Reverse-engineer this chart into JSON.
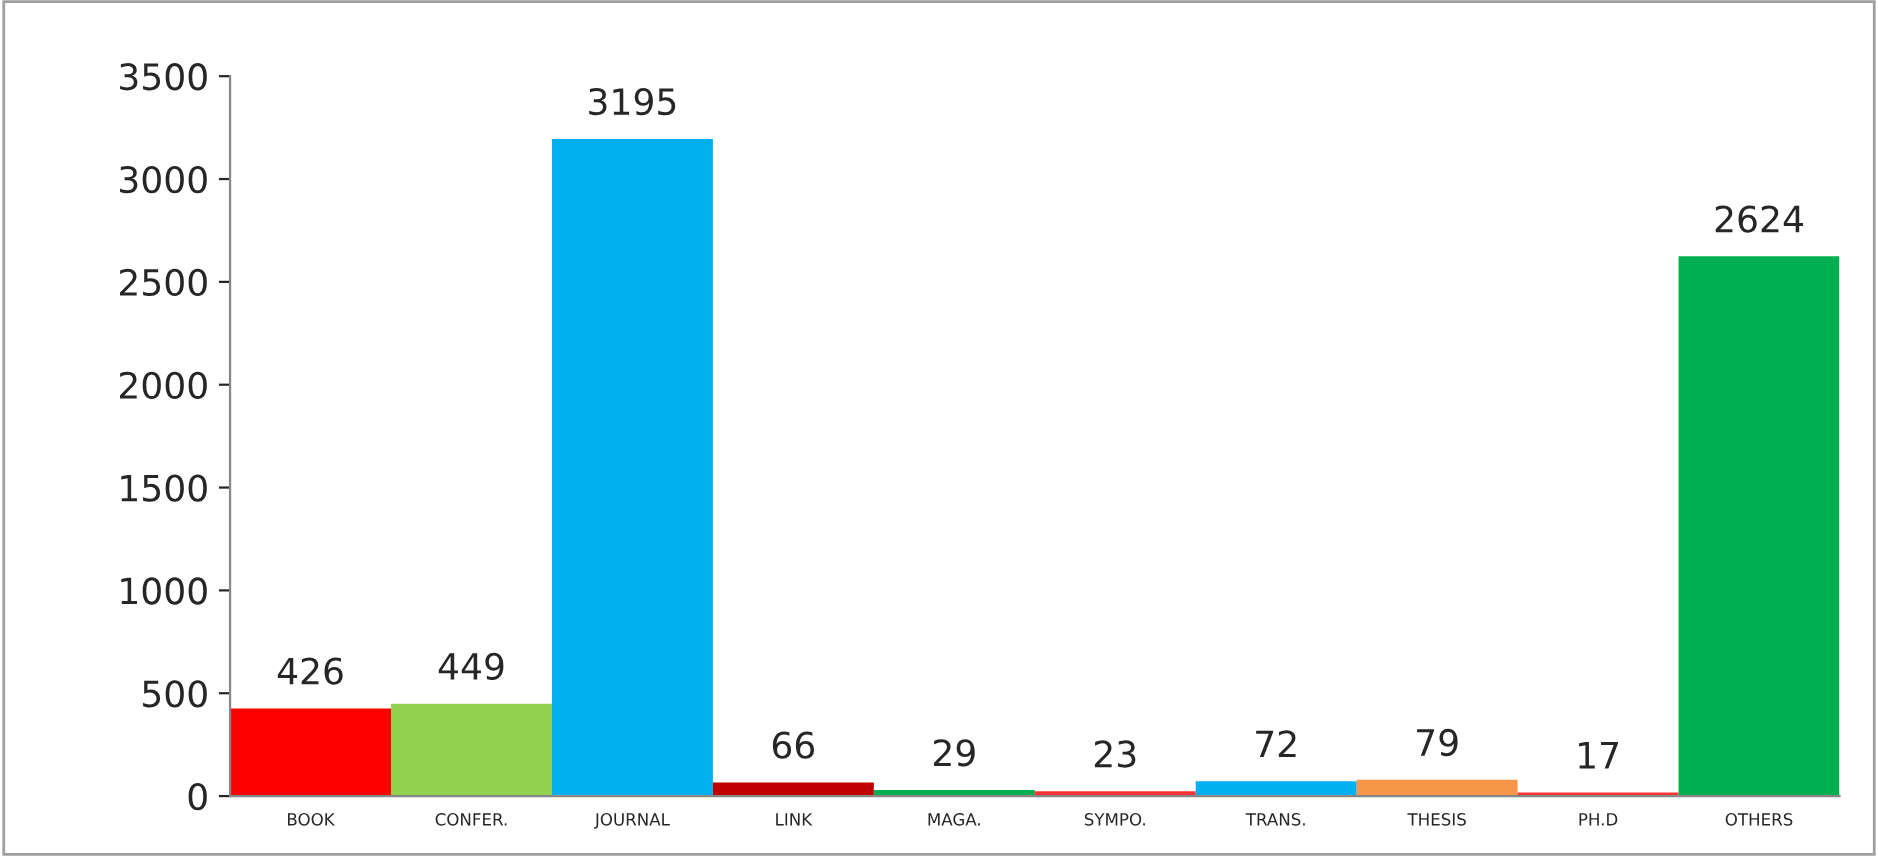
{
  "chart_data": {
    "type": "bar",
    "categories": [
      "BOOK",
      "CONFER.",
      "JOURNAL",
      "LINK",
      "MAGA.",
      "SYMPO.",
      "TRANS.",
      "THESIS",
      "PH.D",
      "OTHERS"
    ],
    "values": [
      426,
      449,
      3195,
      66,
      29,
      23,
      72,
      79,
      17,
      2624
    ],
    "colors": [
      "#ff0000",
      "#92d050",
      "#00b0f0",
      "#c00000",
      "#00b050",
      "#ff3333",
      "#00b0f0",
      "#f79646",
      "#ff3333",
      "#00b050"
    ],
    "ylim": [
      0,
      3500
    ],
    "yticks": [
      0,
      500,
      1000,
      1500,
      2000,
      2500,
      3000,
      3500
    ],
    "data_labels": true,
    "grid": false,
    "legend": false
  }
}
